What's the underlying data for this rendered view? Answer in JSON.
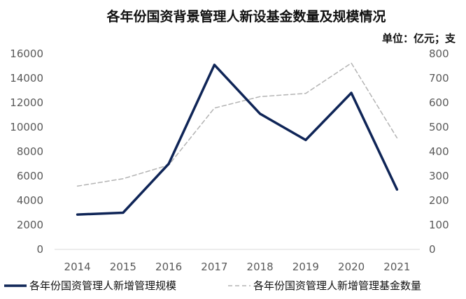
{
  "chart_data": {
    "type": "line",
    "title": "各年份国资背景管理人新设基金数量及规模情况",
    "unit_note": "单位：亿元；支",
    "categories": [
      "2014",
      "2015",
      "2016",
      "2017",
      "2018",
      "2019",
      "2020",
      "2021"
    ],
    "y_left": {
      "ticks": [
        "0",
        "2000",
        "4000",
        "6000",
        "8000",
        "10000",
        "12000",
        "14000",
        "16000"
      ],
      "ylim": [
        0,
        16000
      ]
    },
    "y_right": {
      "ticks": [
        "0",
        "100",
        "200",
        "300",
        "400",
        "500",
        "600",
        "700",
        "800"
      ],
      "ylim": [
        0,
        800
      ]
    },
    "series": [
      {
        "name": "各年份国资管理人新增管理规模",
        "axis": "left",
        "style": "solid",
        "color": "#0f2557",
        "values": [
          2850,
          3000,
          7000,
          15100,
          11100,
          8950,
          12800,
          4900
        ]
      },
      {
        "name": "各年份国资管理人新增管理基金数量",
        "axis": "right",
        "style": "dashed",
        "color": "#b3b3b3",
        "values": [
          259,
          289,
          345,
          578,
          625,
          638,
          762,
          456
        ]
      }
    ],
    "grid": false,
    "legend_position": "bottom"
  }
}
